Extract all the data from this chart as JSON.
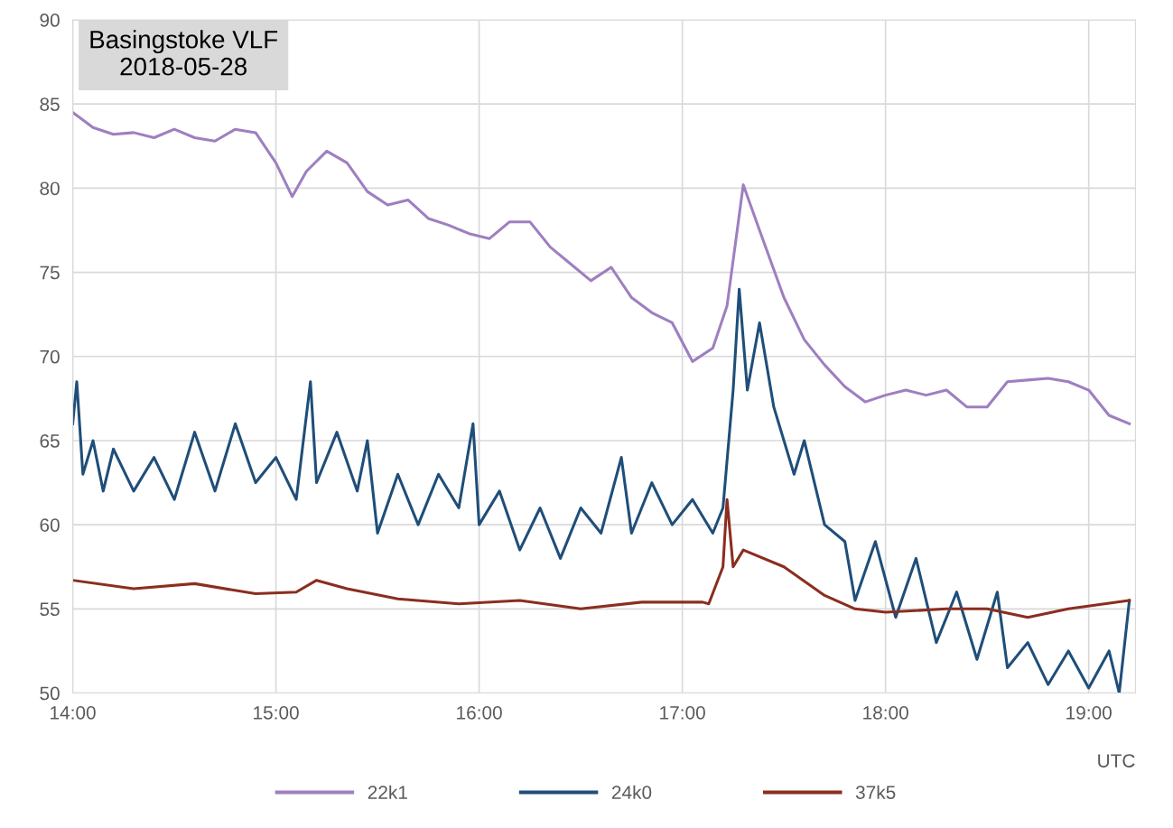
{
  "chart_data": {
    "type": "line",
    "title": "Basingstoke VLF\n2018-05-28",
    "xlabel": "UTC",
    "xlim": [
      14,
      19.23
    ],
    "xticks": [
      {
        "value": 14,
        "label": "14:00"
      },
      {
        "value": 15,
        "label": "15:00"
      },
      {
        "value": 16,
        "label": "16:00"
      },
      {
        "value": 17,
        "label": "17:00"
      },
      {
        "value": 18,
        "label": "18:00"
      },
      {
        "value": 19,
        "label": "19:00"
      }
    ],
    "ylim": [
      50,
      90
    ],
    "yticks": [
      50,
      55,
      60,
      65,
      70,
      75,
      80,
      85,
      90
    ],
    "grid": true,
    "legend": "bottom",
    "marker": "none",
    "line_style": "solid",
    "series": [
      {
        "name": "22k1",
        "color": "#9e7fc0",
        "x": [
          14.0,
          14.1,
          14.2,
          14.3,
          14.4,
          14.5,
          14.6,
          14.7,
          14.8,
          14.9,
          15.0,
          15.08,
          15.15,
          15.25,
          15.35,
          15.45,
          15.55,
          15.65,
          15.75,
          15.85,
          15.95,
          16.05,
          16.15,
          16.25,
          16.35,
          16.45,
          16.55,
          16.65,
          16.75,
          16.85,
          16.95,
          17.05,
          17.15,
          17.22,
          17.3,
          17.38,
          17.5,
          17.6,
          17.7,
          17.8,
          17.9,
          18.0,
          18.1,
          18.2,
          18.3,
          18.4,
          18.5,
          18.6,
          18.7,
          18.8,
          18.9,
          19.0,
          19.1,
          19.2
        ],
        "values": [
          84.5,
          83.6,
          83.2,
          83.3,
          83.0,
          83.5,
          83.0,
          82.8,
          83.5,
          83.3,
          81.5,
          79.5,
          81.0,
          82.2,
          81.5,
          79.8,
          79.0,
          79.3,
          78.2,
          77.8,
          77.3,
          77.0,
          78.0,
          78.0,
          76.5,
          75.5,
          74.5,
          75.3,
          73.5,
          72.6,
          72.0,
          69.7,
          70.5,
          73.0,
          80.2,
          77.5,
          73.5,
          71.0,
          69.5,
          68.2,
          67.3,
          67.7,
          68.0,
          67.7,
          68.0,
          67.0,
          67.0,
          68.5,
          68.6,
          68.7,
          68.5,
          68.0,
          66.5,
          66.0
        ]
      },
      {
        "name": "24k0",
        "color": "#1f4e79",
        "x": [
          14.0,
          14.02,
          14.05,
          14.1,
          14.15,
          14.2,
          14.3,
          14.4,
          14.5,
          14.6,
          14.7,
          14.8,
          14.9,
          15.0,
          15.1,
          15.17,
          15.2,
          15.3,
          15.4,
          15.45,
          15.5,
          15.6,
          15.7,
          15.8,
          15.9,
          15.97,
          16.0,
          16.1,
          16.2,
          16.3,
          16.4,
          16.5,
          16.6,
          16.7,
          16.75,
          16.85,
          16.95,
          17.05,
          17.15,
          17.2,
          17.25,
          17.28,
          17.32,
          17.38,
          17.45,
          17.55,
          17.6,
          17.7,
          17.8,
          17.85,
          17.95,
          18.05,
          18.15,
          18.25,
          18.35,
          18.45,
          18.55,
          18.6,
          18.7,
          18.8,
          18.9,
          19.0,
          19.1,
          19.15,
          19.2
        ],
        "values": [
          66,
          68.5,
          63,
          65,
          62,
          64.5,
          62,
          64,
          61.5,
          65.5,
          62,
          66,
          62.5,
          64,
          61.5,
          68.5,
          62.5,
          65.5,
          62,
          65,
          59.5,
          63,
          60,
          63,
          61,
          66,
          60,
          62,
          58.5,
          61,
          58,
          61,
          59.5,
          64,
          59.5,
          62.5,
          60,
          61.5,
          59.5,
          61,
          68,
          74,
          68,
          72,
          67,
          63,
          65,
          60,
          59,
          55.5,
          59,
          54.5,
          58,
          53,
          56,
          52,
          56,
          51.5,
          53,
          50.5,
          52.5,
          50.3,
          52.5,
          50,
          55.5
        ]
      },
      {
        "name": "37k5",
        "color": "#8b2e1f",
        "x": [
          14.0,
          14.3,
          14.6,
          14.9,
          15.1,
          15.2,
          15.35,
          15.6,
          15.9,
          16.2,
          16.5,
          16.8,
          17.1,
          17.13,
          17.2,
          17.22,
          17.25,
          17.3,
          17.5,
          17.7,
          17.85,
          18.0,
          18.3,
          18.5,
          18.7,
          18.9,
          19.2
        ],
        "values": [
          56.7,
          56.2,
          56.5,
          55.9,
          56.0,
          56.7,
          56.2,
          55.6,
          55.3,
          55.5,
          55.0,
          55.4,
          55.4,
          55.3,
          57.5,
          61.5,
          57.5,
          58.5,
          57.5,
          55.8,
          55.0,
          54.8,
          55.0,
          55.0,
          54.5,
          55.0,
          55.5
        ]
      }
    ]
  }
}
